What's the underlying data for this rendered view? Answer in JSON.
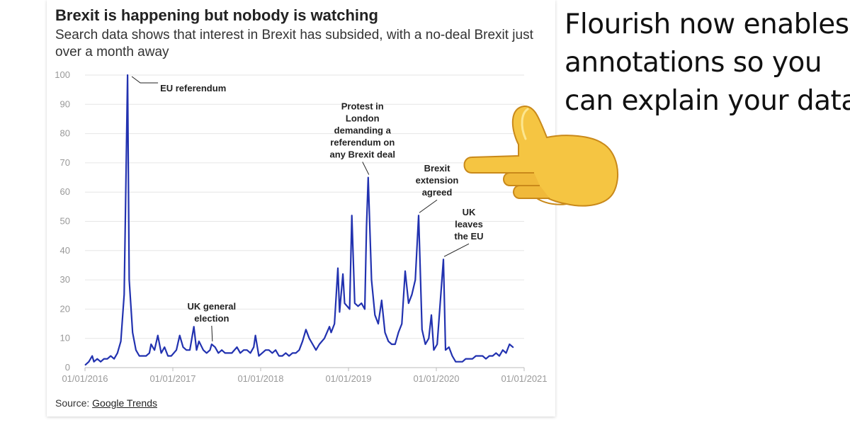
{
  "chart_data": {
    "type": "line",
    "title": "Brexit is happening but nobody is watching",
    "subtitle": "Search data shows that interest in Brexit has subsided, with a no-deal Brexit just over a month away",
    "xlabel": "",
    "ylabel": "",
    "ylim": [
      0,
      100
    ],
    "yticks": [
      "0",
      "10",
      "20",
      "30",
      "40",
      "50",
      "60",
      "70",
      "80",
      "90",
      "100"
    ],
    "xticks": [
      "01/01/2016",
      "01/01/2017",
      "01/01/2018",
      "01/01/2019",
      "01/01/2020",
      "01/01/2021"
    ],
    "grid": "horizontal",
    "series": [
      {
        "color": "#2232b0",
        "points": [
          [
            "2016-01-03",
            1
          ],
          [
            "2016-01-17",
            2
          ],
          [
            "2016-01-31",
            4
          ],
          [
            "2016-02-07",
            2
          ],
          [
            "2016-02-21",
            3
          ],
          [
            "2016-03-06",
            2
          ],
          [
            "2016-03-20",
            3
          ],
          [
            "2016-04-03",
            3
          ],
          [
            "2016-04-17",
            4
          ],
          [
            "2016-05-01",
            3
          ],
          [
            "2016-05-15",
            5
          ],
          [
            "2016-05-29",
            9
          ],
          [
            "2016-06-12",
            25
          ],
          [
            "2016-06-26",
            100
          ],
          [
            "2016-07-03",
            30
          ],
          [
            "2016-07-17",
            12
          ],
          [
            "2016-07-31",
            6
          ],
          [
            "2016-08-14",
            4
          ],
          [
            "2016-08-28",
            4
          ],
          [
            "2016-09-11",
            4
          ],
          [
            "2016-09-25",
            5
          ],
          [
            "2016-10-02",
            8
          ],
          [
            "2016-10-16",
            6
          ],
          [
            "2016-10-30",
            11
          ],
          [
            "2016-11-13",
            5
          ],
          [
            "2016-11-27",
            7
          ],
          [
            "2016-12-11",
            4
          ],
          [
            "2016-12-25",
            4
          ],
          [
            "2017-01-15",
            6
          ],
          [
            "2017-01-29",
            11
          ],
          [
            "2017-02-12",
            7
          ],
          [
            "2017-02-26",
            6
          ],
          [
            "2017-03-12",
            6
          ],
          [
            "2017-03-29",
            14
          ],
          [
            "2017-04-09",
            6
          ],
          [
            "2017-04-19",
            9
          ],
          [
            "2017-05-07",
            6
          ],
          [
            "2017-05-21",
            5
          ],
          [
            "2017-06-04",
            6
          ],
          [
            "2017-06-11",
            8
          ],
          [
            "2017-06-25",
            7
          ],
          [
            "2017-07-09",
            5
          ],
          [
            "2017-07-23",
            6
          ],
          [
            "2017-08-06",
            5
          ],
          [
            "2017-08-20",
            5
          ],
          [
            "2017-09-03",
            5
          ],
          [
            "2017-09-24",
            7
          ],
          [
            "2017-10-08",
            5
          ],
          [
            "2017-10-22",
            6
          ],
          [
            "2017-11-05",
            6
          ],
          [
            "2017-11-19",
            5
          ],
          [
            "2017-12-03",
            7
          ],
          [
            "2017-12-10",
            11
          ],
          [
            "2017-12-24",
            4
          ],
          [
            "2018-01-07",
            5
          ],
          [
            "2018-01-21",
            6
          ],
          [
            "2018-02-04",
            6
          ],
          [
            "2018-02-18",
            5
          ],
          [
            "2018-03-04",
            6
          ],
          [
            "2018-03-18",
            4
          ],
          [
            "2018-04-01",
            4
          ],
          [
            "2018-04-15",
            5
          ],
          [
            "2018-04-29",
            4
          ],
          [
            "2018-05-13",
            5
          ],
          [
            "2018-05-27",
            5
          ],
          [
            "2018-06-10",
            6
          ],
          [
            "2018-06-24",
            9
          ],
          [
            "2018-07-08",
            13
          ],
          [
            "2018-07-22",
            10
          ],
          [
            "2018-08-05",
            8
          ],
          [
            "2018-08-19",
            6
          ],
          [
            "2018-09-02",
            8
          ],
          [
            "2018-09-23",
            10
          ],
          [
            "2018-10-14",
            14
          ],
          [
            "2018-10-21",
            12
          ],
          [
            "2018-11-04",
            15
          ],
          [
            "2018-11-18",
            34
          ],
          [
            "2018-11-25",
            19
          ],
          [
            "2018-12-09",
            32
          ],
          [
            "2018-12-16",
            22
          ],
          [
            "2019-01-06",
            20
          ],
          [
            "2019-01-15",
            52
          ],
          [
            "2019-01-27",
            22
          ],
          [
            "2019-02-10",
            21
          ],
          [
            "2019-02-24",
            22
          ],
          [
            "2019-03-10",
            20
          ],
          [
            "2019-03-17",
            48
          ],
          [
            "2019-03-24",
            65
          ],
          [
            "2019-04-07",
            30
          ],
          [
            "2019-04-21",
            18
          ],
          [
            "2019-05-05",
            15
          ],
          [
            "2019-05-19",
            23
          ],
          [
            "2019-06-02",
            12
          ],
          [
            "2019-06-16",
            9
          ],
          [
            "2019-06-30",
            8
          ],
          [
            "2019-07-14",
            8
          ],
          [
            "2019-07-28",
            12
          ],
          [
            "2019-08-11",
            15
          ],
          [
            "2019-08-25",
            33
          ],
          [
            "2019-09-08",
            22
          ],
          [
            "2019-09-22",
            25
          ],
          [
            "2019-10-06",
            30
          ],
          [
            "2019-10-20",
            52
          ],
          [
            "2019-11-03",
            13
          ],
          [
            "2019-11-17",
            8
          ],
          [
            "2019-12-01",
            10
          ],
          [
            "2019-12-12",
            18
          ],
          [
            "2019-12-22",
            6
          ],
          [
            "2020-01-05",
            8
          ],
          [
            "2020-01-31",
            37
          ],
          [
            "2020-02-09",
            6
          ],
          [
            "2020-02-23",
            7
          ],
          [
            "2020-03-08",
            4
          ],
          [
            "2020-03-22",
            2
          ],
          [
            "2020-04-05",
            2
          ],
          [
            "2020-04-19",
            2
          ],
          [
            "2020-05-03",
            3
          ],
          [
            "2020-05-17",
            3
          ],
          [
            "2020-05-31",
            3
          ],
          [
            "2020-06-14",
            4
          ],
          [
            "2020-06-28",
            4
          ],
          [
            "2020-07-12",
            4
          ],
          [
            "2020-07-26",
            3
          ],
          [
            "2020-08-09",
            4
          ],
          [
            "2020-08-23",
            4
          ],
          [
            "2020-09-06",
            5
          ],
          [
            "2020-09-20",
            4
          ],
          [
            "2020-10-04",
            6
          ],
          [
            "2020-10-18",
            5
          ],
          [
            "2020-11-01",
            8
          ],
          [
            "2020-11-15",
            7
          ]
        ]
      }
    ],
    "annotations": [
      {
        "lines": [
          "EU referendum"
        ],
        "date": "2016-06-26",
        "value": 100,
        "align": "start"
      },
      {
        "lines": [
          "UK general",
          "election"
        ],
        "date": "2017-06-11",
        "value": 8,
        "align": "middle"
      },
      {
        "lines": [
          "Protest in",
          "London",
          "demanding a",
          "referendum on",
          "any Brexit deal"
        ],
        "date": "2019-03-24",
        "value": 65,
        "align": "middle"
      },
      {
        "lines": [
          "Brexit",
          "extension",
          "agreed"
        ],
        "date": "2019-10-20",
        "value": 52,
        "align": "middle"
      },
      {
        "lines": [
          "UK",
          "leaves",
          "the EU"
        ],
        "date": "2020-01-31",
        "value": 37,
        "align": "middle"
      }
    ]
  },
  "source": {
    "prefix": "Source: ",
    "link_text": "Google Trends"
  },
  "promo": {
    "lines": [
      "Flourish now enables",
      "annotations so you",
      "can explain your data"
    ]
  },
  "icon": "pointing-hand-icon"
}
